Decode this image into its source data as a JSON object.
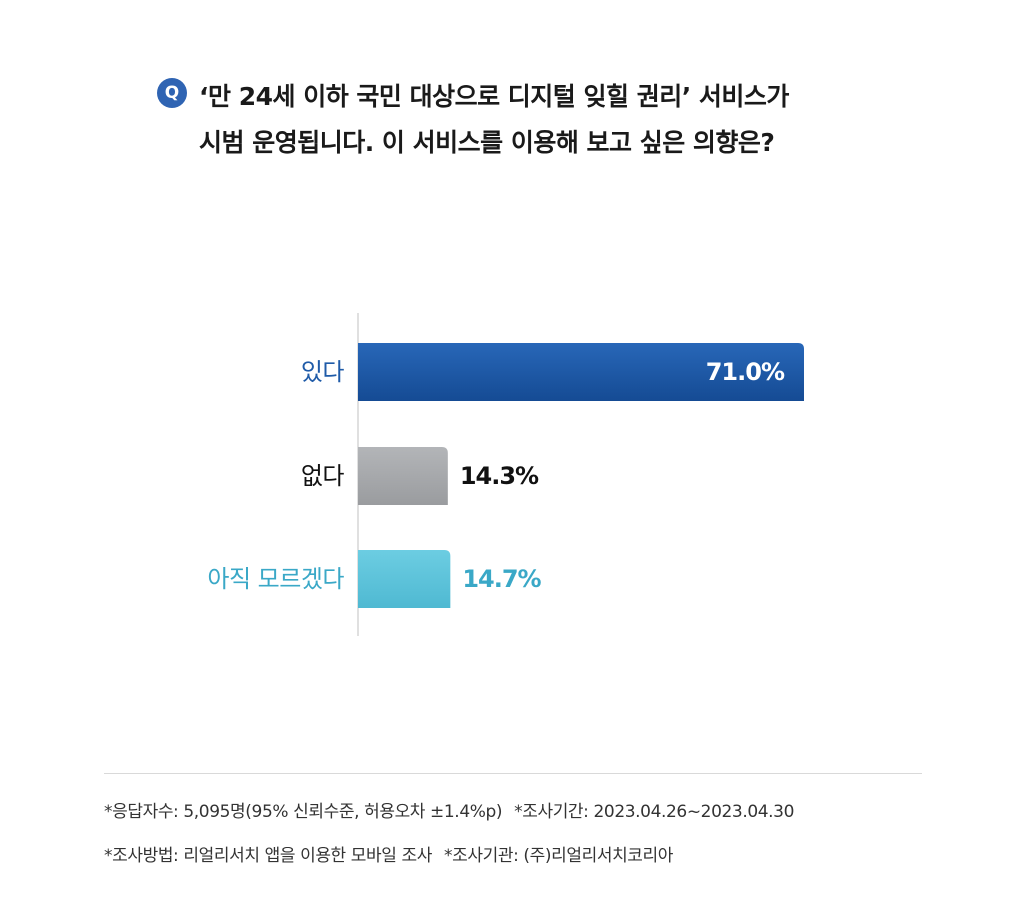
{
  "question": {
    "badge": "Q",
    "line1": "‘만 24세 이하 국민 대상으로 디지털 잊힐 권리’ 서비스가",
    "line2": "시범 운영됩니다. 이 서비스를 이용해 보고 싶은 의향은?"
  },
  "chart_data": {
    "type": "bar",
    "orientation": "horizontal",
    "title": "",
    "xlabel": "",
    "ylabel": "",
    "xlim": [
      0,
      100
    ],
    "grid": false,
    "categories": [
      "있다",
      "없다",
      "아직 모르겠다"
    ],
    "values": [
      71.0,
      14.3,
      14.7
    ],
    "value_labels": [
      "71.0%",
      "14.3%",
      "14.7%"
    ],
    "label_colors": [
      "#1f5ba8",
      "#111111",
      "#3aa8c7"
    ],
    "bar_colors": [
      "#1f5ba8",
      "#a7a9ac",
      "#5ec4da"
    ],
    "value_label_colors": [
      "#ffffff",
      "#111111",
      "#3aa8c7"
    ],
    "value_label_inside": [
      true,
      false,
      false
    ]
  },
  "footnotes": {
    "respondents": "*응답자수: 5,095명(95% 신뢰수준, 허용오차 ±1.4%p)",
    "period": "*조사기간: 2023.04.26~2023.04.30",
    "method": "*조사방법: 리얼리서치 앱을 이용한 모바일 조사",
    "agency": "*조사기관: (주)리얼리서치코리아"
  }
}
